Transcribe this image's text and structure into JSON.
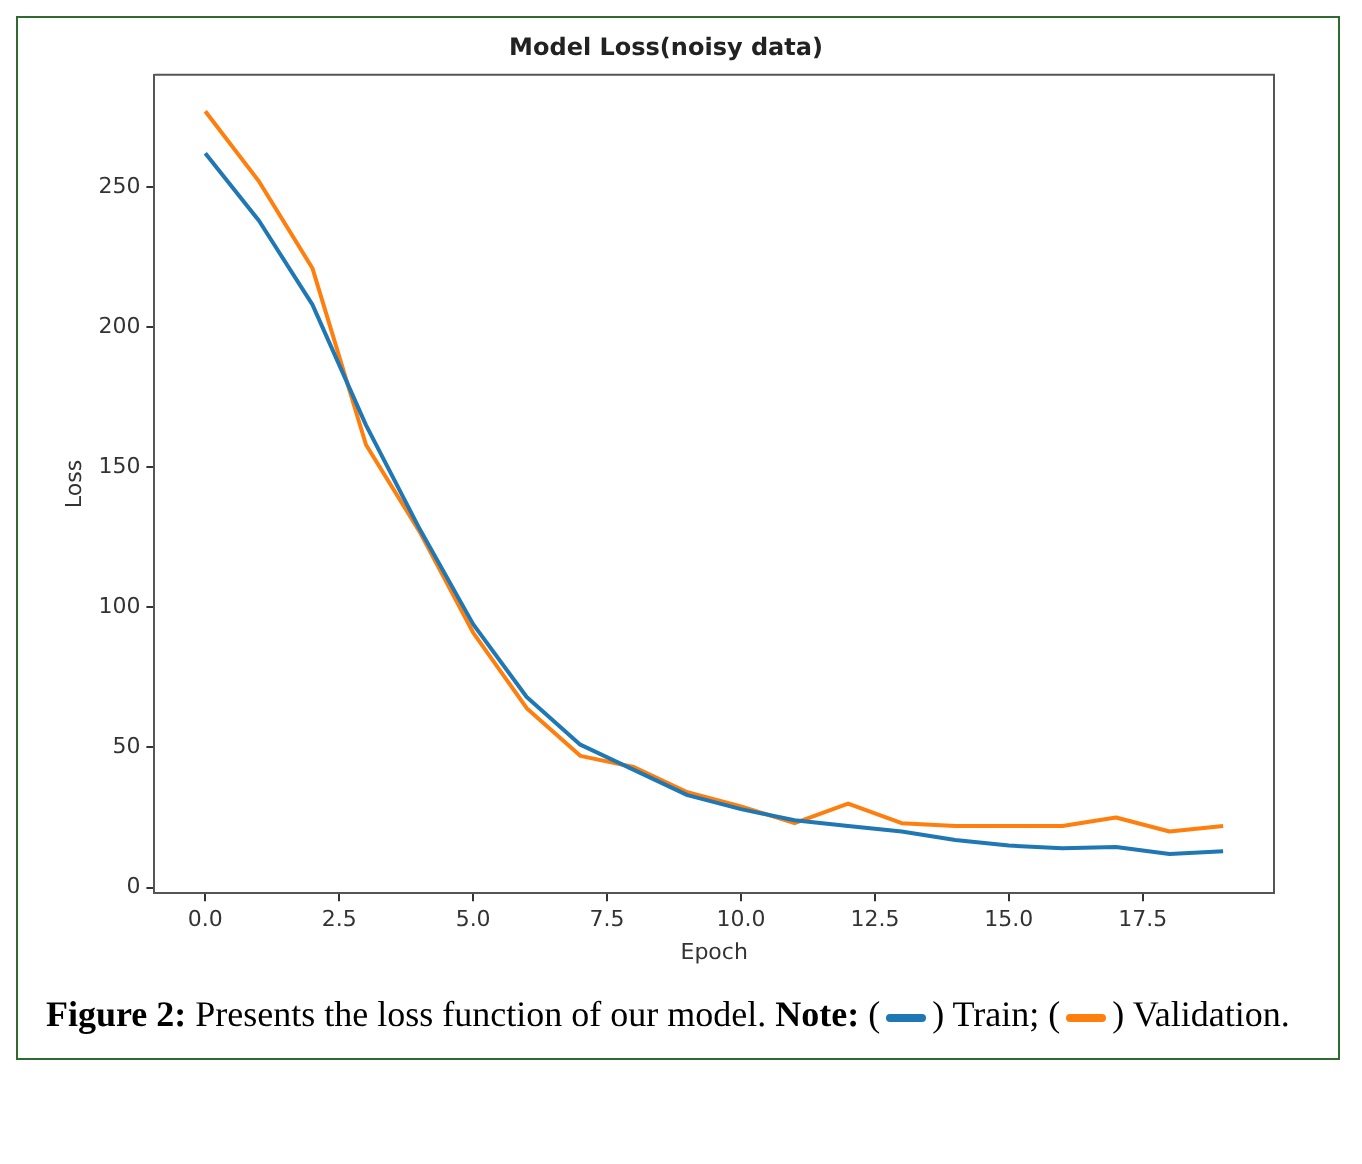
{
  "chart_data": {
    "type": "line",
    "title": "Model Loss(noisy data)",
    "xlabel": "Epoch",
    "ylabel": "Loss",
    "x": [
      0,
      1,
      2,
      3,
      4,
      5,
      6,
      7,
      8,
      9,
      10,
      11,
      12,
      13,
      14,
      15,
      16,
      17,
      18,
      19
    ],
    "series": [
      {
        "name": "Train",
        "color": "#1f77b4",
        "values": [
          262,
          238,
          208,
          165,
          128,
          94,
          68,
          51,
          42,
          33,
          28,
          24,
          22,
          20,
          17,
          15,
          14,
          14.5,
          12,
          13
        ]
      },
      {
        "name": "Validation",
        "color": "#ff7f0e",
        "values": [
          277,
          252,
          221,
          158,
          127,
          91,
          64,
          47,
          43,
          34,
          29,
          23,
          30,
          23,
          22,
          22,
          22,
          25,
          20,
          22
        ]
      }
    ],
    "xlim": [
      -0.95,
      19.95
    ],
    "xticks": [
      {
        "value": 0,
        "label": "0.0"
      },
      {
        "value": 2.5,
        "label": "2.5"
      },
      {
        "value": 5,
        "label": "5.0"
      },
      {
        "value": 7.5,
        "label": "7.5"
      },
      {
        "value": 10,
        "label": "10.0"
      },
      {
        "value": 12.5,
        "label": "12.5"
      },
      {
        "value": 15,
        "label": "15.0"
      },
      {
        "value": 17.5,
        "label": "17.5"
      }
    ],
    "ylim": [
      -2,
      290
    ],
    "yticks": [
      0,
      50,
      100,
      150,
      200,
      250
    ],
    "grid": false,
    "legend": "bottom",
    "line_style": "solid",
    "marker": "none",
    "annotations": [
      "Figure 2:",
      "Presents the loss function of our model.",
      "Note:",
      "(",
      ")",
      ";",
      "."
    ]
  }
}
